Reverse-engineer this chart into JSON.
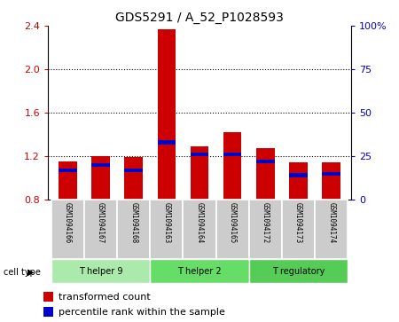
{
  "title": "GDS5291 / A_52_P1028593",
  "samples": [
    "GSM1094166",
    "GSM1094167",
    "GSM1094168",
    "GSM1094163",
    "GSM1094164",
    "GSM1094165",
    "GSM1094172",
    "GSM1094173",
    "GSM1094174"
  ],
  "transformed_counts": [
    1.15,
    1.2,
    1.19,
    2.37,
    1.29,
    1.42,
    1.27,
    1.14,
    1.14
  ],
  "percentile_ranks": [
    17,
    20,
    17,
    33,
    26,
    26,
    22,
    14,
    15
  ],
  "ylim_left": [
    0.8,
    2.4
  ],
  "ylim_right": [
    0,
    100
  ],
  "yticks_left": [
    0.8,
    1.2,
    1.6,
    2.0,
    2.4
  ],
  "yticks_right": [
    0,
    25,
    50,
    75,
    100
  ],
  "ytick_labels_right": [
    "0",
    "25",
    "50",
    "75",
    "100%"
  ],
  "cell_groups": [
    {
      "label": "T helper 9",
      "start": 0,
      "end": 3,
      "color": "#aaeaaa"
    },
    {
      "label": "T helper 2",
      "start": 3,
      "end": 6,
      "color": "#66dd66"
    },
    {
      "label": "T regulatory",
      "start": 6,
      "end": 9,
      "color": "#55cc55"
    }
  ],
  "bar_color_red": "#cc0000",
  "bar_color_blue": "#0000cc",
  "bar_width": 0.55,
  "cell_type_label": "cell type",
  "legend_red": "transformed count",
  "legend_blue": "percentile rank within the sample",
  "tick_label_color_left": "#cc0000",
  "tick_label_color_right": "#0000cc",
  "sample_bg_color": "#cccccc",
  "title_fontsize": 10,
  "axis_fontsize": 8,
  "legend_fontsize": 8
}
